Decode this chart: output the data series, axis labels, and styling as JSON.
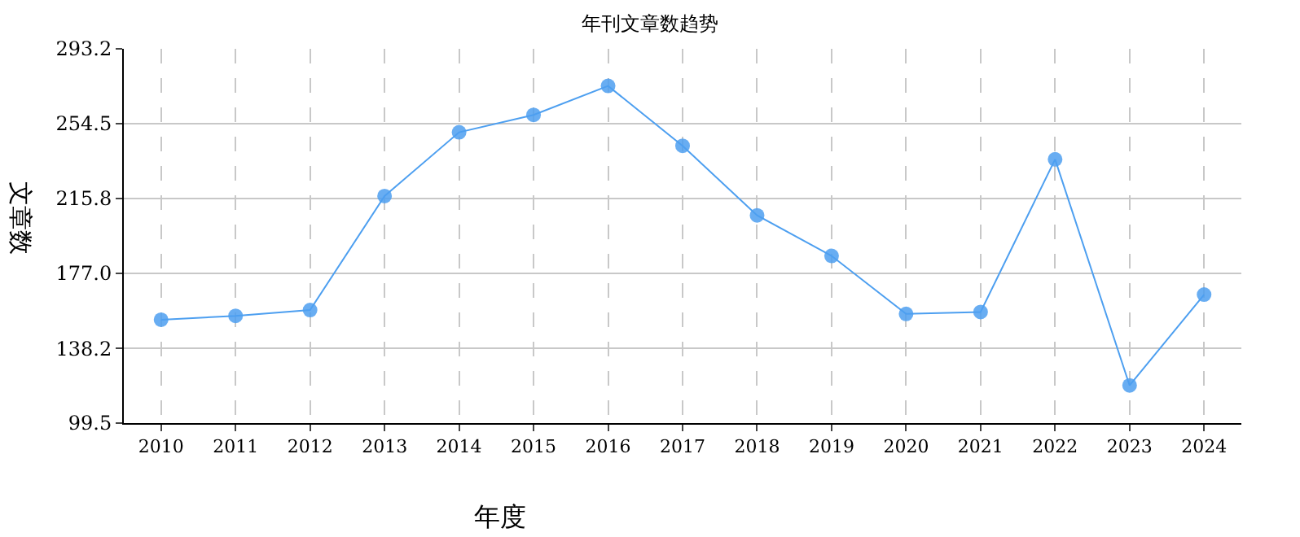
{
  "chart_data": {
    "type": "line",
    "title": "年刊文章数趋势",
    "xlabel": "年度",
    "ylabel": "文章数",
    "categories": [
      "2010",
      "2011",
      "2012",
      "2013",
      "2014",
      "2015",
      "2016",
      "2017",
      "2018",
      "2019",
      "2020",
      "2021",
      "2022",
      "2023",
      "2024"
    ],
    "series": [
      {
        "color": "#4d9ff0",
        "values": [
          153,
          155,
          158,
          217,
          250,
          259,
          274,
          243,
          207,
          186,
          156,
          157,
          236,
          119,
          166
        ]
      }
    ],
    "ylim": [
      99.5,
      293.2
    ],
    "yticks": [
      99.5,
      138.2,
      {
        "value": 177.0,
        "label": "177.0"
      },
      215.8,
      254.5,
      293.2
    ],
    "grid": true,
    "marker": "circle",
    "line_style": "solid"
  }
}
